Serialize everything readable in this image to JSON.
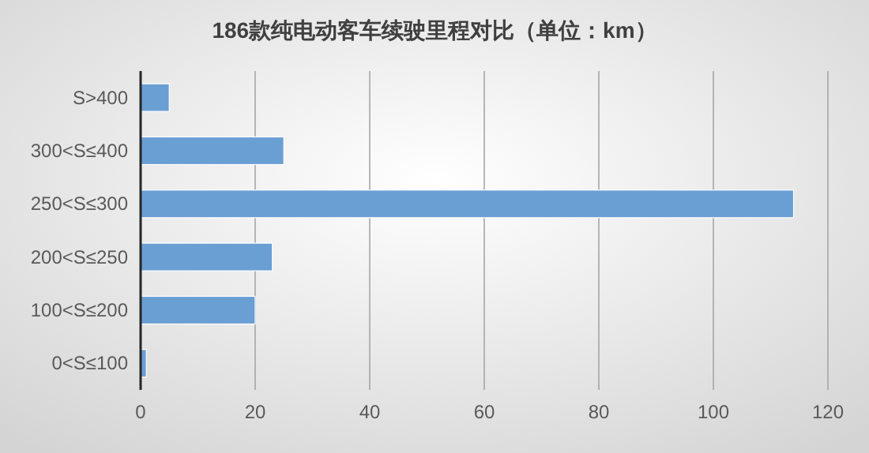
{
  "chart_data": {
    "type": "bar",
    "orientation": "horizontal",
    "title": "186款纯电动客车续驶里程对比（单位：km）",
    "categories": [
      "S>400",
      "300<S≤400",
      "250<S≤300",
      "200<S≤250",
      "100<S≤200",
      "0<S≤100"
    ],
    "values": [
      5,
      25,
      114,
      23,
      20,
      1
    ],
    "color": "#6a9fd4",
    "xlim": [
      0,
      120
    ],
    "xticks": [
      0,
      20,
      40,
      60,
      80,
      100,
      120
    ],
    "grid": "x"
  }
}
